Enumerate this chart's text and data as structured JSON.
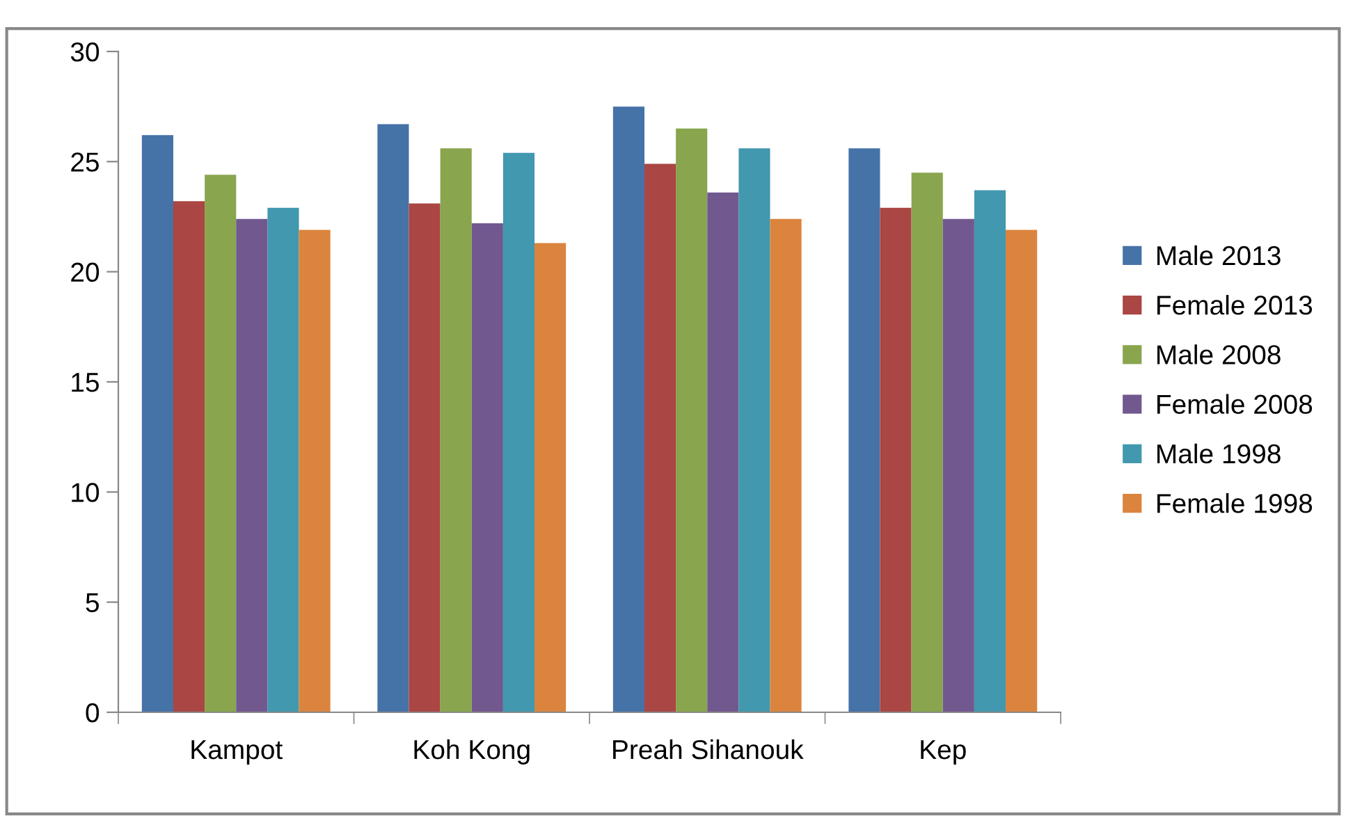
{
  "chart_data": {
    "type": "bar",
    "categories": [
      "Kampot",
      "Koh Kong",
      "Preah Sihanouk",
      "Kep"
    ],
    "series": [
      {
        "name": "Male 2013",
        "color": "#4572a7",
        "values": [
          26.2,
          26.7,
          27.5,
          25.6
        ]
      },
      {
        "name": "Female 2013",
        "color": "#aa4643",
        "values": [
          23.2,
          23.1,
          24.9,
          22.9
        ]
      },
      {
        "name": "Male 2008",
        "color": "#89a54e",
        "values": [
          24.4,
          25.6,
          26.5,
          24.5
        ]
      },
      {
        "name": "Female 2008",
        "color": "#71588f",
        "values": [
          22.4,
          22.2,
          23.6,
          22.4
        ]
      },
      {
        "name": "Male 1998",
        "color": "#4198af",
        "values": [
          22.9,
          25.4,
          25.6,
          23.7
        ]
      },
      {
        "name": "Female 1998",
        "color": "#db843d",
        "values": [
          21.9,
          21.3,
          22.4,
          21.9
        ]
      }
    ],
    "ylim": [
      0,
      30
    ],
    "yticks": [
      0,
      5,
      10,
      15,
      20,
      25,
      30
    ],
    "grid": false,
    "legend": "right"
  }
}
